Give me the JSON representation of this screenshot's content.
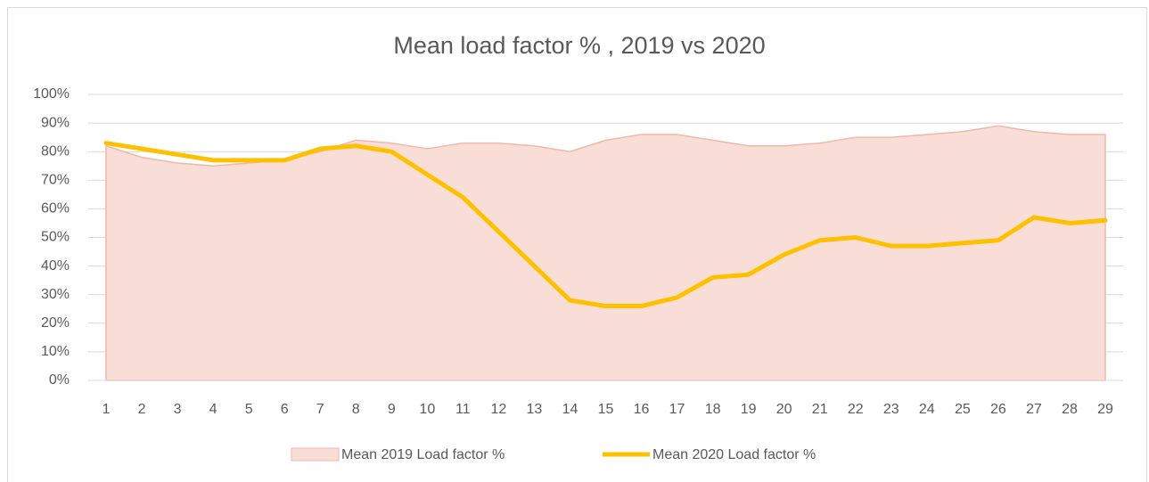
{
  "chart_data": {
    "type": "area_line",
    "title": "Mean load factor % , 2019 vs 2020",
    "categories": [
      "1",
      "2",
      "3",
      "4",
      "5",
      "6",
      "7",
      "8",
      "9",
      "10",
      "11",
      "12",
      "13",
      "14",
      "15",
      "16",
      "17",
      "18",
      "19",
      "20",
      "21",
      "22",
      "23",
      "24",
      "25",
      "26",
      "27",
      "28",
      "29"
    ],
    "series": [
      {
        "name": "Mean 2019 Load factor %",
        "kind": "area",
        "color": "#f9ded8",
        "stroke": "#f2b7a6",
        "values": [
          82,
          78,
          76,
          75,
          76,
          77,
          80,
          84,
          83,
          81,
          83,
          83,
          82,
          80,
          84,
          86,
          86,
          84,
          82,
          82,
          83,
          85,
          85,
          86,
          87,
          89,
          87,
          86,
          86
        ]
      },
      {
        "name": "Mean 2020 Load factor %",
        "kind": "line",
        "color": "#ffc000",
        "values": [
          83,
          81,
          79,
          77,
          77,
          77,
          81,
          82,
          80,
          72,
          64,
          52,
          40,
          28,
          26,
          26,
          29,
          36,
          37,
          44,
          49,
          50,
          47,
          47,
          48,
          49,
          57,
          55,
          56
        ]
      }
    ],
    "ylim": [
      0,
      100
    ],
    "yticks": [
      {
        "value": 0,
        "label": "0%"
      },
      {
        "value": 10,
        "label": "10%"
      },
      {
        "value": 20,
        "label": "20%"
      },
      {
        "value": 30,
        "label": "30%"
      },
      {
        "value": 40,
        "label": "40%"
      },
      {
        "value": 50,
        "label": "50%"
      },
      {
        "value": 60,
        "label": "60%"
      },
      {
        "value": 70,
        "label": "70%"
      },
      {
        "value": 80,
        "label": "80%"
      },
      {
        "value": 90,
        "label": "90%"
      },
      {
        "value": 100,
        "label": "100%"
      }
    ],
    "grid": true,
    "legend": "bottom"
  }
}
